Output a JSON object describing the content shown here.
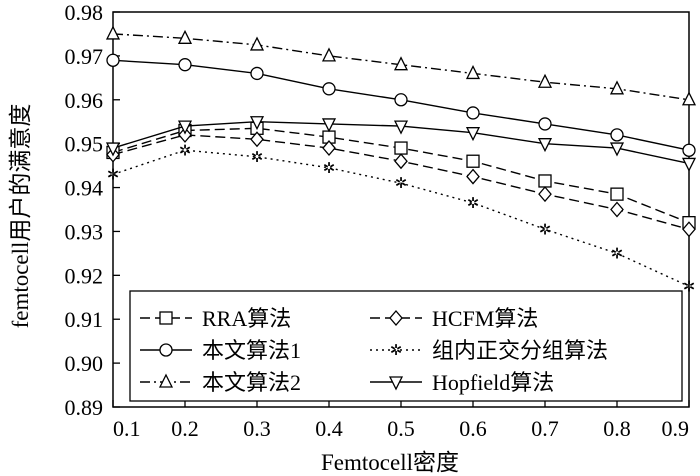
{
  "chart_data": {
    "type": "line",
    "xlabel": "Femtocell密度",
    "ylabel": "femtocell用户的满意度",
    "xlim": [
      0.1,
      0.9
    ],
    "ylim": [
      0.89,
      0.98
    ],
    "xticks": [
      "0.1",
      "0.2",
      "0.3",
      "0.4",
      "0.5",
      "0.6",
      "0.7",
      "0.8",
      "0.9"
    ],
    "yticks": [
      "0.89",
      "0.90",
      "0.91",
      "0.92",
      "0.93",
      "0.94",
      "0.95",
      "0.96",
      "0.97",
      "0.98"
    ],
    "x": [
      0.1,
      0.2,
      0.3,
      0.4,
      0.5,
      0.6,
      0.7,
      0.8,
      0.9
    ],
    "grid": false,
    "legend_position": "bottom",
    "series": [
      {
        "name": "RRA算法",
        "style": "dashed",
        "marker": "square",
        "values": [
          0.948,
          0.953,
          0.9535,
          0.9515,
          0.949,
          0.946,
          0.9415,
          0.9385,
          0.932
        ]
      },
      {
        "name": "HCFM算法",
        "style": "dashed",
        "marker": "diamond",
        "values": [
          0.9475,
          0.952,
          0.951,
          0.949,
          0.946,
          0.9425,
          0.9385,
          0.935,
          0.9305
        ]
      },
      {
        "name": "本文算法1",
        "style": "solid",
        "marker": "circle",
        "values": [
          0.969,
          0.968,
          0.966,
          0.9625,
          0.96,
          0.957,
          0.9545,
          0.952,
          0.9485
        ]
      },
      {
        "name": "组内正交分组算法",
        "style": "dotted",
        "marker": "star",
        "values": [
          0.943,
          0.9485,
          0.947,
          0.9445,
          0.941,
          0.9365,
          0.9305,
          0.925,
          0.9175
        ]
      },
      {
        "name": "本文算法2",
        "style": "dashdot",
        "marker": "triangle-up",
        "values": [
          0.975,
          0.974,
          0.9725,
          0.97,
          0.968,
          0.966,
          0.964,
          0.9625,
          0.96
        ]
      },
      {
        "name": "Hopfield算法",
        "style": "solid",
        "marker": "triangle-down",
        "values": [
          0.949,
          0.954,
          0.955,
          0.9545,
          0.954,
          0.9525,
          0.95,
          0.949,
          0.9455
        ]
      }
    ]
  }
}
